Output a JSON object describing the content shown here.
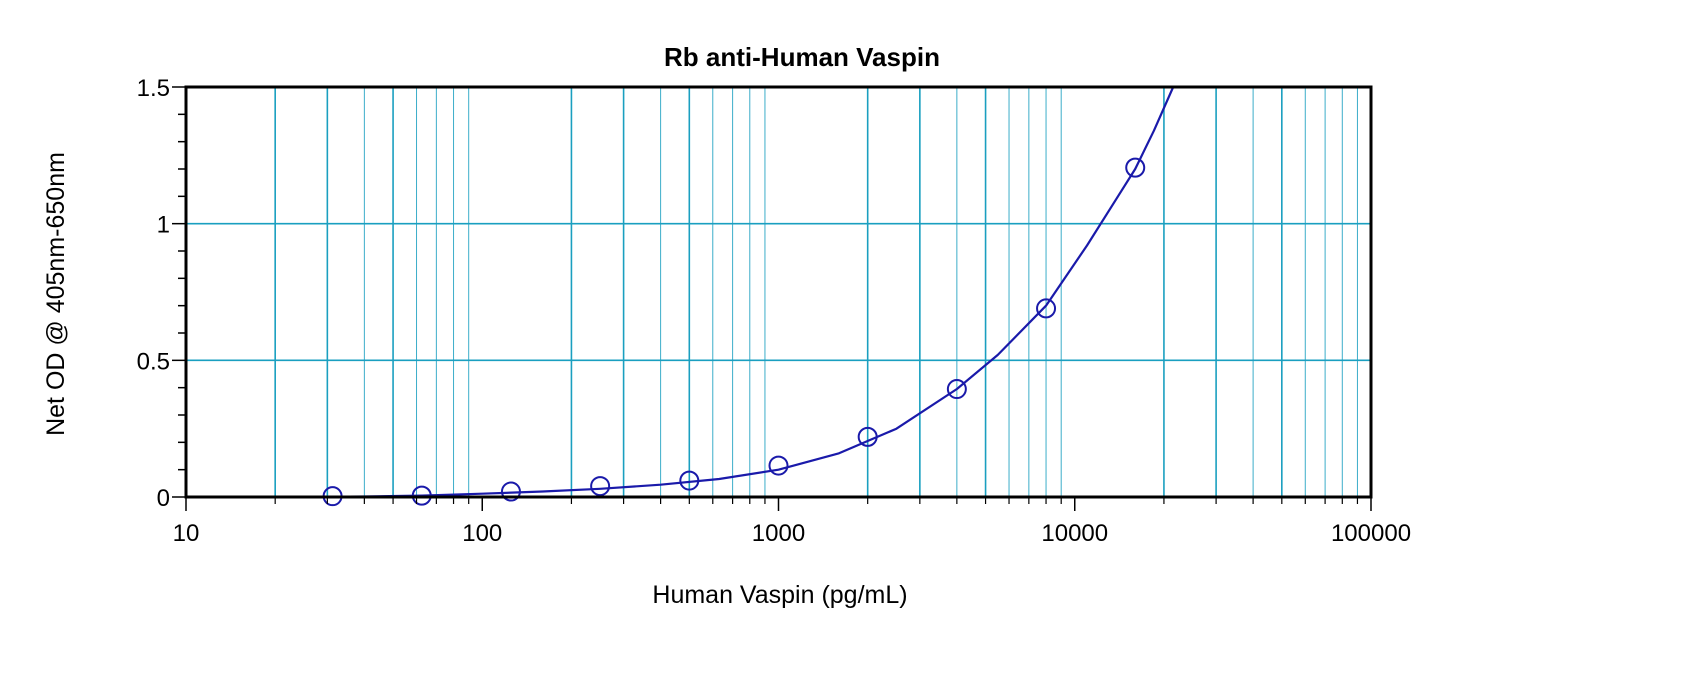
{
  "chart_data": {
    "type": "scatter",
    "title": "Rb anti-Human Vaspin",
    "xlabel": "Human Vaspin (pg/mL)",
    "ylabel": "Net OD @ 405nm-650nm",
    "x_scale": "log",
    "xlim": [
      10,
      100000
    ],
    "ylim": [
      0,
      1.5
    ],
    "x_ticks": [
      10,
      100,
      1000,
      10000,
      100000
    ],
    "x_tick_labels": [
      "10",
      "100",
      "1000",
      "10000",
      "100000"
    ],
    "y_ticks": [
      0,
      0.5,
      1,
      1.5
    ],
    "y_tick_labels": [
      "0",
      "0.5",
      "1",
      "1.5"
    ],
    "grid": true,
    "legend": "none",
    "colors": {
      "grid": "#1a9fc0",
      "series": "#1a1aaa",
      "axis": "#000000"
    },
    "points": {
      "x": [
        31.25,
        62.5,
        125,
        250,
        500,
        1000,
        2000,
        4000,
        8000,
        16000
      ],
      "y": [
        0.003,
        0.005,
        0.02,
        0.04,
        0.06,
        0.115,
        0.22,
        0.395,
        0.69,
        1.205
      ]
    },
    "fit_curve": {
      "x": [
        25,
        40,
        62.5,
        100,
        160,
        250,
        400,
        630,
        1000,
        1600,
        2500,
        4000,
        5500,
        8000,
        11000,
        14000,
        16000,
        18500,
        21500
      ],
      "y": [
        0.0,
        0.002,
        0.005,
        0.012,
        0.02,
        0.03,
        0.045,
        0.066,
        0.1,
        0.16,
        0.25,
        0.395,
        0.52,
        0.7,
        0.92,
        1.1,
        1.2,
        1.34,
        1.5
      ]
    }
  }
}
